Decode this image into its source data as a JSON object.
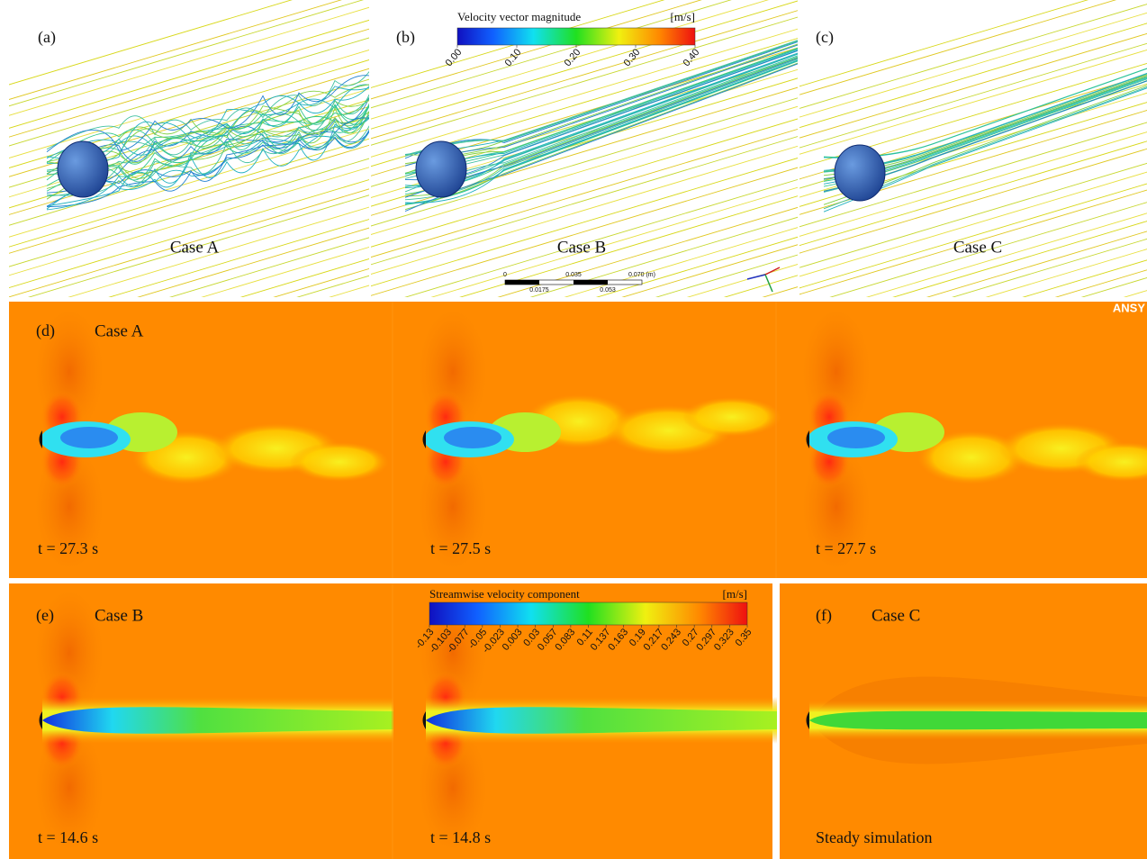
{
  "panels": [
    {
      "label": "(a)",
      "caption": "Case A"
    },
    {
      "label": "(b)",
      "caption": "Case B"
    },
    {
      "label": "(c)",
      "caption": "Case C"
    }
  ],
  "colorbar_top": {
    "title": "Velocity vector magnitude",
    "unit": "[m/s]",
    "ticks": [
      "0.00",
      "0.10",
      "0.20",
      "0.30",
      "0.40"
    ]
  },
  "scale_bar": {
    "top_labels": [
      "0",
      "0.035",
      "0.070 (m)"
    ],
    "bottom_labels": [
      "0.0175",
      "0.053"
    ]
  },
  "logo": "ANSY",
  "panel_d": {
    "label": "(d)",
    "case": "Case A",
    "times": [
      "t = 27.3 s",
      "t = 27.5 s",
      "t = 27.7 s"
    ]
  },
  "panel_e": {
    "label": "(e)",
    "case": "Case B",
    "times": [
      "t = 14.6 s",
      "t = 14.8 s"
    ]
  },
  "panel_f": {
    "label": "(f)",
    "case": "Case C",
    "note": "Steady simulation"
  },
  "colorbar_bottom": {
    "title": "Streamwise velocity component",
    "unit": "[m/s]",
    "ticks": [
      "-0.13",
      "-0.103",
      "-0.077",
      "-0.05",
      "-0.023",
      "0.003",
      "0.03",
      "0.057",
      "0.083",
      "0.11",
      "0.137",
      "0.163",
      "0.19",
      "0.217",
      "0.243",
      "0.27",
      "0.297",
      "0.323",
      "0.35"
    ]
  }
}
